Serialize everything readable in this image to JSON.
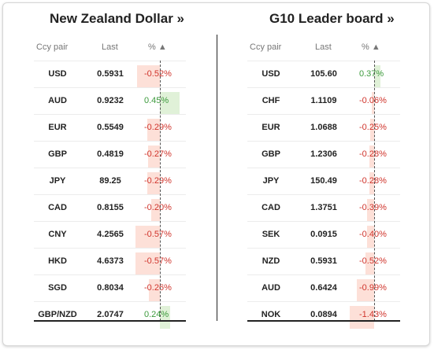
{
  "left_panel": {
    "title": "New Zealand Dollar »",
    "headers": {
      "pair": "Ccy pair",
      "last": "Last",
      "pct": "% ▲"
    },
    "rows": [
      {
        "pair": "USD",
        "last": "0.5931",
        "pct": "-0.52%",
        "value": -0.52
      },
      {
        "pair": "AUD",
        "last": "0.9232",
        "pct": "0.45%",
        "value": 0.45
      },
      {
        "pair": "EUR",
        "last": "0.5549",
        "pct": "-0.29%",
        "value": -0.29
      },
      {
        "pair": "GBP",
        "last": "0.4819",
        "pct": "-0.27%",
        "value": -0.27
      },
      {
        "pair": "JPY",
        "last": "89.25",
        "pct": "-0.29%",
        "value": -0.29
      },
      {
        "pair": "CAD",
        "last": "0.8155",
        "pct": "-0.20%",
        "value": -0.2
      },
      {
        "pair": "CNY",
        "last": "4.2565",
        "pct": "-0.57%",
        "value": -0.57
      },
      {
        "pair": "HKD",
        "last": "4.6373",
        "pct": "-0.57%",
        "value": -0.57
      },
      {
        "pair": "SGD",
        "last": "0.8034",
        "pct": "-0.26%",
        "value": -0.26
      },
      {
        "pair": "GBP/NZD",
        "last": "2.0747",
        "pct": "0.24%",
        "value": 0.24
      }
    ]
  },
  "right_panel": {
    "title": "G10 Leader board »",
    "headers": {
      "pair": "Ccy pair",
      "last": "Last",
      "pct": "% ▲"
    },
    "rows": [
      {
        "pair": "USD",
        "last": "105.60",
        "pct": "0.37%",
        "value": 0.37
      },
      {
        "pair": "CHF",
        "last": "1.1109",
        "pct": "-0.06%",
        "value": -0.06
      },
      {
        "pair": "EUR",
        "last": "1.0688",
        "pct": "-0.25%",
        "value": -0.25
      },
      {
        "pair": "GBP",
        "last": "1.2306",
        "pct": "-0.28%",
        "value": -0.28
      },
      {
        "pair": "JPY",
        "last": "150.49",
        "pct": "-0.28%",
        "value": -0.28
      },
      {
        "pair": "CAD",
        "last": "1.3751",
        "pct": "-0.39%",
        "value": -0.39
      },
      {
        "pair": "SEK",
        "last": "0.0915",
        "pct": "-0.40%",
        "value": -0.4
      },
      {
        "pair": "NZD",
        "last": "0.5931",
        "pct": "-0.52%",
        "value": -0.52
      },
      {
        "pair": "AUD",
        "last": "0.6424",
        "pct": "-0.99%",
        "value": -0.99
      },
      {
        "pair": "NOK",
        "last": "0.0894",
        "pct": "-1.43%",
        "value": -1.43
      }
    ]
  },
  "colors": {
    "negative_text": "#d0342c",
    "positive_text": "#3c9a3c",
    "negative_bar": "#fde0d8",
    "positive_bar": "#e0f1d8"
  }
}
